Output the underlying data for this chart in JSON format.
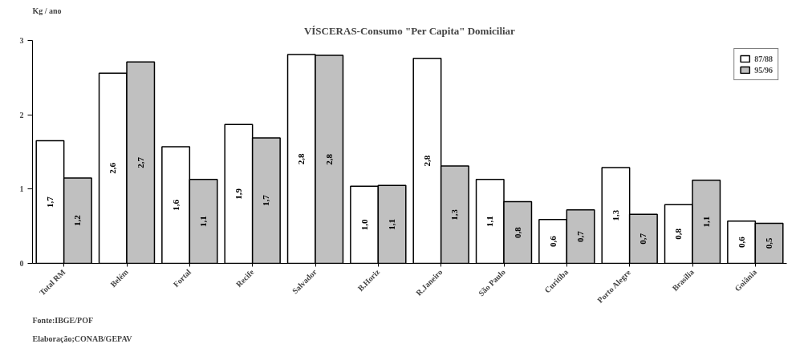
{
  "chart_data": {
    "type": "bar",
    "title": "VÍSCERAS-Consumo \"Per Capita\" Domiciliar",
    "ylabel": "Kg / ano",
    "categories": [
      "Total RM",
      "Belém",
      "Fortal",
      "Recife",
      "Salvador",
      "B.Horiz",
      "R.Janeiro",
      "São Paulo",
      "Curitiba",
      "Porto Alegre",
      "Brasília",
      "Goiânia"
    ],
    "series": [
      {
        "name": "87/88",
        "color": "#ffffff",
        "values": [
          1.65,
          2.56,
          1.57,
          1.87,
          2.81,
          1.04,
          2.76,
          1.13,
          0.59,
          1.29,
          0.79,
          0.57
        ],
        "value_labels": [
          "1,7",
          "2,6",
          "1,6",
          "1,9",
          "2,8",
          "1,0",
          "2,8",
          "1,1",
          "0,6",
          "1,3",
          "0,8",
          "0,6"
        ]
      },
      {
        "name": "95/96",
        "color": "#c0c0c0",
        "values": [
          1.15,
          2.71,
          1.13,
          1.69,
          2.8,
          1.05,
          1.31,
          0.83,
          0.72,
          0.66,
          1.12,
          0.54
        ],
        "value_labels": [
          "1,2",
          "2,7",
          "1,1",
          "1,7",
          "2,8",
          "1,1",
          "1,3",
          "0,8",
          "0,7",
          "0,7",
          "1,1",
          "0,5"
        ]
      }
    ],
    "ylim": [
      0,
      3
    ],
    "yticks": [
      0,
      1,
      2,
      3
    ],
    "grid": false,
    "legend": "top right",
    "annotations": [
      "Fonte:IBGE/POF",
      "Elaboração;CONAB/GEPAV"
    ]
  }
}
